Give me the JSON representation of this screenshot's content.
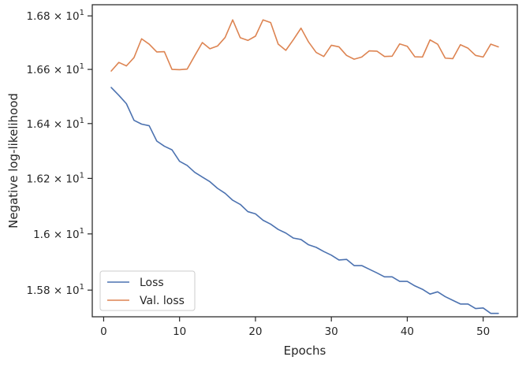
{
  "chart_data": {
    "type": "line",
    "title": "",
    "xlabel": "Epochs",
    "ylabel": "Negative log-likelihood",
    "yscale": "log",
    "xlim": [
      -1.5,
      54.5
    ],
    "ylim": [
      15.706,
      16.842
    ],
    "grid": false,
    "legend_position": "lower-left",
    "x_ticks": [
      0,
      10,
      20,
      30,
      40,
      50
    ],
    "x_tick_labels": [
      "0",
      "10",
      "20",
      "30",
      "40",
      "50"
    ],
    "y_ticks": [
      15.8,
      16.0,
      16.2,
      16.4,
      16.6,
      16.8
    ],
    "y_tick_labels": [
      {
        "mantissa": "1.58",
        "exp": "1"
      },
      {
        "mantissa": "1.6",
        "exp": "1"
      },
      {
        "mantissa": "1.62",
        "exp": "1"
      },
      {
        "mantissa": "1.64",
        "exp": "1"
      },
      {
        "mantissa": "1.66",
        "exp": "1"
      },
      {
        "mantissa": "1.68",
        "exp": "1"
      }
    ],
    "tick_base_label": "10",
    "tick_times_label": "×",
    "x": [
      1,
      2,
      3,
      4,
      5,
      6,
      7,
      8,
      9,
      10,
      11,
      12,
      13,
      14,
      15,
      16,
      17,
      18,
      19,
      20,
      21,
      22,
      23,
      24,
      25,
      26,
      27,
      28,
      29,
      30,
      31,
      32,
      33,
      34,
      35,
      36,
      37,
      38,
      39,
      40,
      41,
      42,
      43,
      44,
      45,
      46,
      47,
      48,
      49,
      50,
      51,
      52
    ],
    "series": [
      {
        "name": "Loss",
        "color": "#4c72b0",
        "values": [
          16.533,
          16.504,
          16.473,
          16.412,
          16.398,
          16.392,
          16.336,
          16.317,
          16.304,
          16.262,
          16.247,
          16.222,
          16.205,
          16.188,
          16.164,
          16.146,
          16.121,
          16.106,
          16.08,
          16.072,
          16.049,
          16.035,
          16.016,
          16.003,
          15.985,
          15.98,
          15.961,
          15.952,
          15.937,
          15.924,
          15.907,
          15.909,
          15.887,
          15.887,
          15.874,
          15.861,
          15.847,
          15.847,
          15.831,
          15.831,
          15.815,
          15.803,
          15.786,
          15.794,
          15.777,
          15.764,
          15.751,
          15.751,
          15.735,
          15.737,
          15.718,
          15.718
        ]
      },
      {
        "name": "Val. loss",
        "color": "#dd8452",
        "values": [
          16.594,
          16.626,
          16.613,
          16.644,
          16.714,
          16.694,
          16.665,
          16.666,
          16.6,
          16.599,
          16.601,
          16.651,
          16.7,
          16.677,
          16.687,
          16.719,
          16.785,
          16.718,
          16.708,
          16.724,
          16.785,
          16.775,
          16.694,
          16.671,
          16.711,
          16.754,
          16.702,
          16.663,
          16.648,
          16.69,
          16.684,
          16.652,
          16.638,
          16.646,
          16.669,
          16.668,
          16.648,
          16.649,
          16.695,
          16.686,
          16.647,
          16.646,
          16.71,
          16.694,
          16.642,
          16.64,
          16.692,
          16.679,
          16.652,
          16.646,
          16.694,
          16.684
        ]
      }
    ]
  }
}
